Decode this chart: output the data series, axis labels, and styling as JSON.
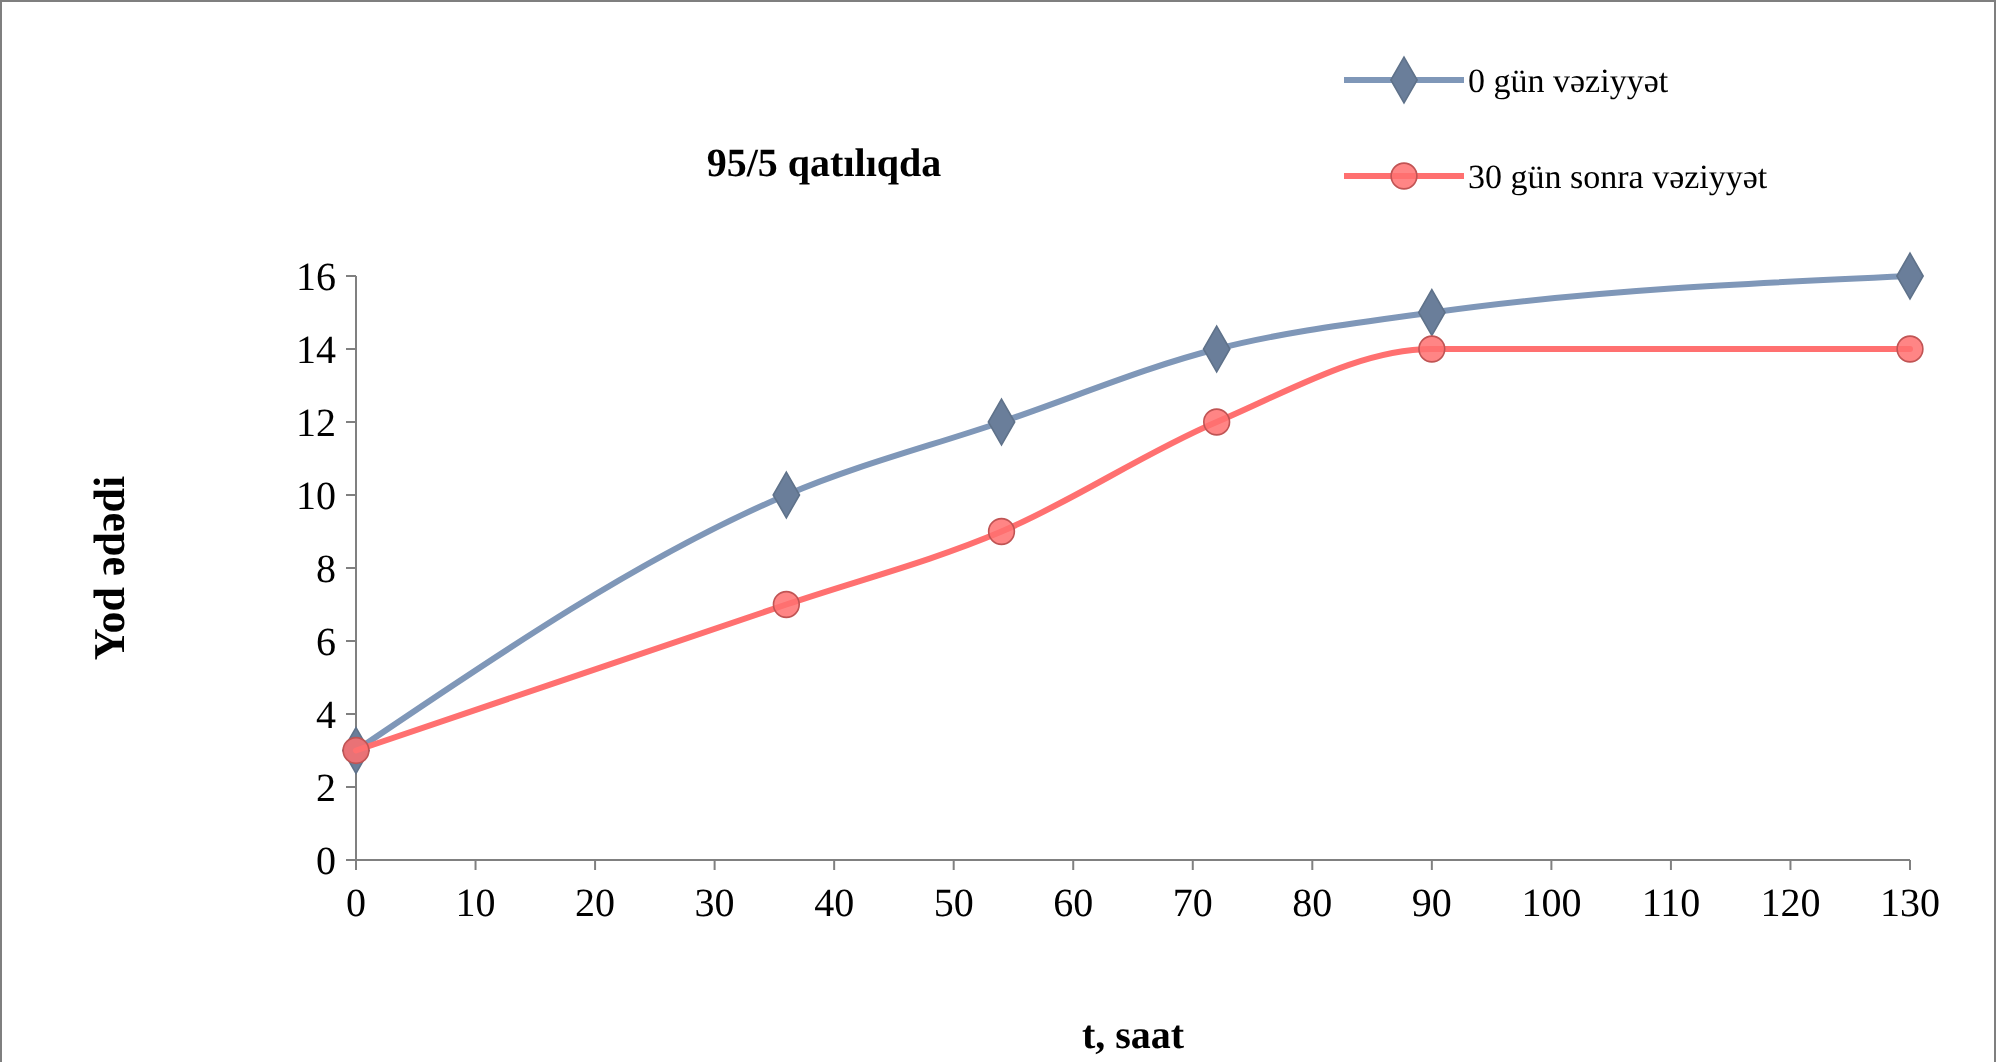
{
  "chart_data": {
    "type": "line",
    "title": "95/5 qatılıqda",
    "xlabel": "t, saat",
    "ylabel": "Yod ədədi",
    "xlim": [
      0,
      130
    ],
    "xticks": [
      0,
      10,
      20,
      30,
      40,
      50,
      60,
      70,
      80,
      90,
      100,
      110,
      120,
      130
    ],
    "ylim": [
      0,
      16
    ],
    "yticks": [
      0,
      2,
      4,
      6,
      8,
      10,
      12,
      14,
      16
    ],
    "grid": false,
    "legend": "top right",
    "series": [
      {
        "name": "0 gün vəziyyət",
        "color": "#7f97b8",
        "marker": "diamond",
        "x": [
          0,
          36,
          54,
          72,
          90,
          130
        ],
        "values": [
          3,
          10,
          12,
          14,
          15,
          16
        ]
      },
      {
        "name": "30 gün sonra vəziyyət",
        "color": "#ff7070",
        "marker": "circle",
        "x": [
          0,
          36,
          54,
          72,
          90,
          130
        ],
        "values": [
          3,
          7,
          9,
          12,
          14,
          14
        ]
      }
    ]
  }
}
